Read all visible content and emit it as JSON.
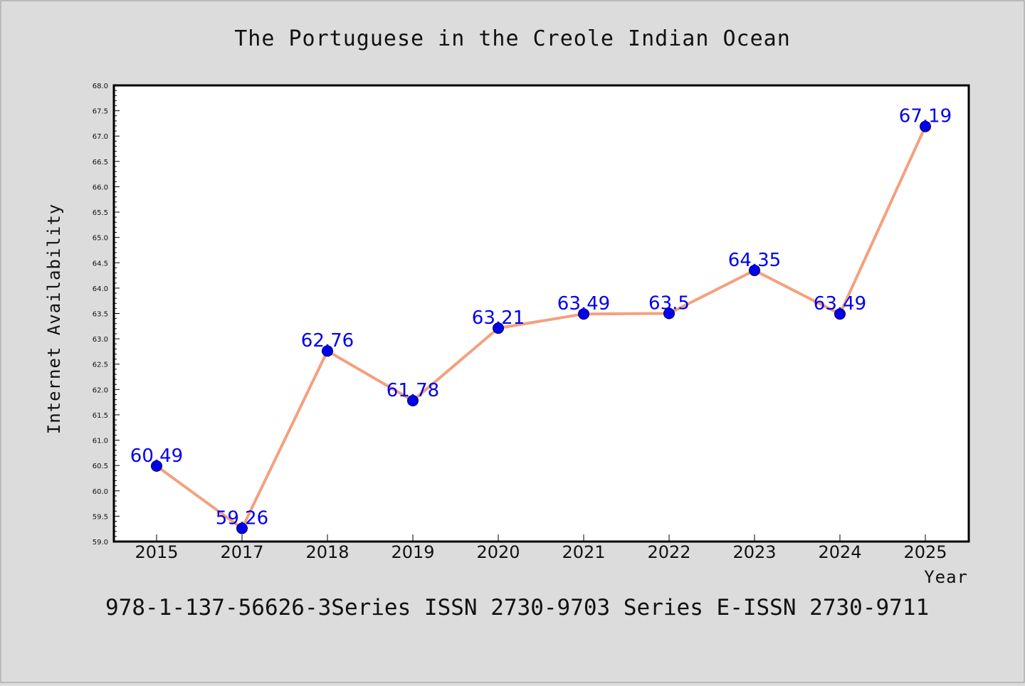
{
  "chart_data": {
    "type": "line",
    "title": "The Portuguese in the Creole Indian Ocean",
    "xlabel": "Year",
    "ylabel": "Internet Availability",
    "categories": [
      "2015",
      "2017",
      "2018",
      "2019",
      "2020",
      "2021",
      "2022",
      "2023",
      "2024",
      "2025"
    ],
    "series": [
      {
        "values": [
          60.49,
          59.26,
          62.76,
          61.78,
          63.21,
          63.49,
          63.5,
          64.35,
          63.49,
          67.19
        ],
        "data_labels": [
          "60.49",
          "59.26",
          "62.76",
          "61.78",
          "63.21",
          "63.49",
          "63.5",
          "64.35",
          "63.49",
          "67.19"
        ]
      }
    ],
    "ylim": [
      59.0,
      68.0
    ],
    "yticks": [
      "59.0",
      "59.5",
      "60.0",
      "60.5",
      "61.0",
      "61.5",
      "62.0",
      "62.5",
      "63.0",
      "63.5",
      "64.0",
      "64.5",
      "65.0",
      "65.5",
      "66.0",
      "66.5",
      "67.0",
      "67.5",
      "68.0"
    ],
    "grid": false,
    "colors": {
      "line": "#f4a07e",
      "marker": "#0000ee",
      "label": "#0000ee",
      "background": "#dcdcdc",
      "plot": "#ffffff"
    }
  },
  "footer": "978-1-137-56626-3Series ISSN 2730-9703 Series E-ISSN 2730-9711"
}
